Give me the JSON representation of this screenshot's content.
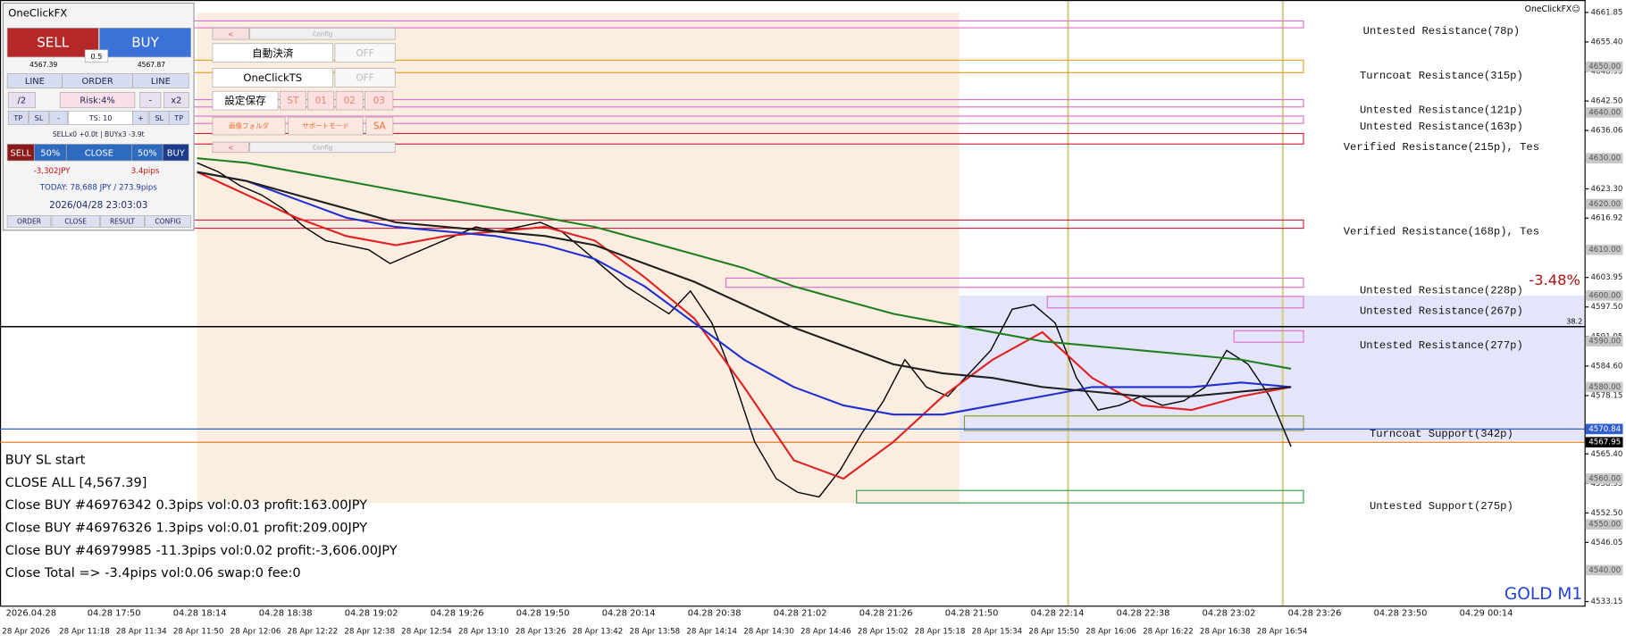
{
  "panel": {
    "title": "OneClickFX",
    "sell": "SELL",
    "buy": "BUY",
    "lot": "0.5",
    "bid": "4567.39",
    "ask": "4567.87",
    "row1": [
      "LINE",
      "ORDER",
      "LINE"
    ],
    "row2": [
      "/2",
      "Risk:4%",
      "-",
      "x2"
    ],
    "row3": [
      "TP",
      "SL",
      "-",
      "TS: 10",
      "+",
      "SL",
      "TP"
    ],
    "positions": "SELLx0 +0.0t | BUYx3 -3.9t",
    "row4": [
      "SELL",
      "50%",
      "CLOSE",
      "50%",
      "BUY"
    ],
    "pl": "-3,302JPY",
    "pips": "3.4pips",
    "today": "TODAY: 78,688 JPY / 273.9pips",
    "time": "2026/04/28 23:03:03",
    "row5": [
      "ORDER",
      "CLOSE",
      "RESULT",
      "CONFIG"
    ]
  },
  "buttons": [
    "<",
    "Config",
    "自動決済",
    "OFF",
    "OneClickTS",
    "OFF",
    "設定保存",
    "ST",
    "01",
    "02",
    "03",
    "画像フォルダ",
    "サポートモード",
    "SA",
    "<",
    "Config"
  ],
  "chart": {
    "ylim": [
      4533.15,
      4661.85
    ],
    "yticks": [
      4661.85,
      {
        "value": 4655.4,
        "label": "4655.40"
      },
      4648.95,
      {
        "value": 4642.5,
        "label": "4642.50"
      },
      4636.06,
      {
        "value": 4623.3,
        "label": "4623.30"
      },
      4616.92,
      4603.95,
      {
        "value": 4597.5,
        "label": "4597.50"
      },
      4591.05,
      {
        "value": 4584.6,
        "label": "4584.60"
      },
      4578.15,
      {
        "value": 4565.4,
        "label": "4565.40"
      },
      4558.95,
      {
        "value": 4552.5,
        "label": "4552.50"
      },
      4546.05,
      4533.15
    ],
    "level_labels": [
      {
        "value": 4650,
        "label": "4650.00"
      },
      {
        "value": 4640,
        "label": "4640.00"
      },
      {
        "value": 4630,
        "label": "4630.00"
      },
      {
        "value": 4620,
        "label": "4620.00"
      },
      {
        "value": 4610,
        "label": "4610.00"
      },
      {
        "value": 4600,
        "label": "4600.00"
      },
      {
        "value": 4590,
        "label": "4590.00"
      },
      {
        "value": 4580,
        "label": "4580.00"
      },
      {
        "value": 4560,
        "label": "4560.00"
      },
      {
        "value": 4550,
        "label": "4550.00"
      },
      {
        "value": 4540,
        "label": "4540.00"
      }
    ],
    "lines": [
      {
        "value": 4593.2,
        "label": "38.2",
        "color": "#000000"
      },
      {
        "value": 4570.84,
        "color": "#3060d0"
      },
      {
        "value": 4567.95,
        "color": "#e07010"
      }
    ],
    "zones": [
      {
        "top": 4660.0,
        "bottom": 4658.5,
        "label": "Untested Resistance(78p)",
        "color": "#e070d0"
      },
      {
        "top": 4651.4,
        "bottom": 4648.7,
        "label": "Turncoat Resistance(315p)",
        "color": "#f0a020"
      },
      {
        "top": 4642.8,
        "bottom": 4641.2,
        "label": "Untested Resistance(121p)",
        "color": "#e070d0"
      },
      {
        "top": 4639.2,
        "bottom": 4637.6,
        "label": "Untested Resistance(163p)",
        "color": "#e070d0"
      },
      {
        "top": 4635.4,
        "bottom": 4633.1,
        "label": "Verified Resistance(215p), Tes",
        "color": "#d02040"
      },
      {
        "top": 4616.5,
        "bottom": 4614.7,
        "label": "Verified Resistance(168p), Tes",
        "color": "#d02040"
      },
      {
        "top": 4603.8,
        "bottom": 4601.8,
        "label": "Untested Resistance(228p)",
        "color": "#e070d0"
      },
      {
        "top": 4599.8,
        "bottom": 4597.3,
        "label": "Untested Resistance(267p)",
        "color": "#e070d0"
      },
      {
        "top": 4592.3,
        "bottom": 4589.8,
        "label": "Untested Resistance(277p)",
        "color": "#e070d0"
      },
      {
        "top": 4573.7,
        "bottom": 4570.5,
        "label": "Turncoat Support(342p)",
        "color": "#8a9a30"
      },
      {
        "top": 4557.4,
        "bottom": 4554.7,
        "label": "Untested Support(275p)",
        "color": "#30a050"
      }
    ],
    "series": [
      {
        "color": "#000000",
        "values": [
          4629,
          4627,
          4624,
          4622,
          4619,
          4615,
          4612,
          4611,
          4610,
          4607,
          4609,
          4611,
          4613,
          4615,
          4614,
          4615,
          4616,
          4614,
          4610,
          4606,
          4602,
          4599,
          4596,
          4601,
          4594,
          4582,
          4568,
          4560,
          4557,
          4556,
          4562,
          4570,
          4577,
          4586,
          4580,
          4578,
          4583,
          4588,
          4597,
          4598,
          4594,
          4582,
          4575,
          4576,
          4578,
          4576,
          4577,
          4580,
          4588,
          4585,
          4578,
          4567
        ]
      },
      {
        "color": "#e02020",
        "values": [
          4627,
          4622,
          4617,
          4613,
          4611,
          4613,
          4614,
          4615,
          4612,
          4604,
          4595,
          4580,
          4564,
          4560,
          4568,
          4578,
          4586,
          4592,
          4582,
          4576,
          4575,
          4578,
          4580
        ]
      },
      {
        "color": "#2030d0",
        "values": [
          4627,
          4625,
          4621,
          4617,
          4615,
          4614,
          4613,
          4611,
          4608,
          4602,
          4594,
          4586,
          4580,
          4576,
          4574,
          4574,
          4576,
          4578,
          4580,
          4580,
          4580,
          4581,
          4580
        ]
      },
      {
        "color": "#202020",
        "values": [
          4627,
          4625,
          4622,
          4619,
          4616,
          4615,
          4614,
          4613,
          4611,
          4607,
          4603,
          4598,
          4593,
          4589,
          4585,
          4583,
          4582,
          4580,
          4579,
          4578,
          4578,
          4579,
          4580
        ]
      },
      {
        "color": "#208020",
        "values": [
          4630,
          4629,
          4627,
          4625,
          4623,
          4621,
          4619,
          4617,
          4615,
          4612,
          4609,
          4606,
          4602,
          4599,
          4596,
          4594,
          4592,
          4590,
          4589,
          4588,
          4587,
          4586,
          4584
        ]
      }
    ],
    "xlabels": [
      "2026.04.28",
      "04.28 17:50",
      "04.28 18:14",
      "04.28 18:38",
      "04.28 19:02",
      "04.28 19:26",
      "04.28 19:50",
      "04.28 20:14",
      "04.28 20:38",
      "04.28 21:02",
      "04.28 21:26",
      "04.28 21:50",
      "04.28 22:14",
      "04.28 22:38",
      "04.28 23:02",
      "04.28 23:26",
      "04.28 23:50",
      "04.29 00:14"
    ],
    "xlabels2": [
      "28 Apr 2026",
      "28 Apr 11:18",
      "28 Apr 11:34",
      "28 Apr 11:50",
      "28 Apr 12:06",
      "28 Apr 12:22",
      "28 Apr 12:38",
      "28 Apr 12:54",
      "28 Apr 13:10",
      "28 Apr 13:26",
      "28 Apr 13:42",
      "28 Apr 13:58",
      "28 Apr 14:14",
      "28 Apr 14:30",
      "28 Apr 14:46",
      "28 Apr 15:02",
      "28 Apr 15:18",
      "28 Apr 15:34",
      "28 Apr 15:50",
      "28 Apr 16:06",
      "28 Apr 16:22",
      "28 Apr 16:38",
      "28 Apr 16:54"
    ]
  },
  "overlay": {
    "brand": "OneClickFX☺",
    "change": "-3.48%",
    "symbol": "GOLD M1"
  },
  "log": [
    "BUY SL start",
    "CLOSE ALL [4,567.39]",
    "Close BUY #46976342 0.3pips vol:0.03 profit:163.00JPY",
    "Close BUY #46976326 1.3pips vol:0.01 profit:209.00JPY",
    "Close BUY #46979985 -11.3pips vol:0.02 profit:-3,606.00JPY",
    "Close Total =>  -3.4pips vol:0.06 swap:0 fee:0"
  ]
}
